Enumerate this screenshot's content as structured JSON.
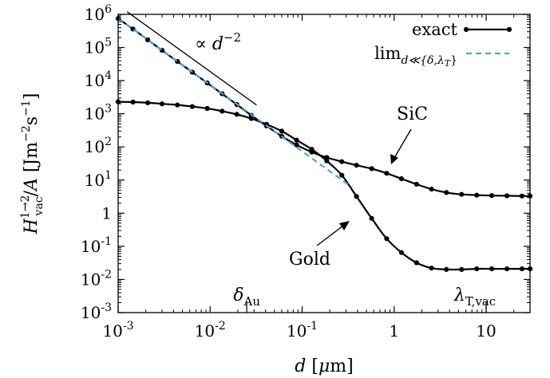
{
  "chart_data": {
    "type": "line",
    "x_scale": "log",
    "y_scale": "log",
    "xlim": [
      0.001,
      30
    ],
    "ylim": [
      0.001,
      1000000
    ],
    "xlabel": "d [μm]",
    "ylabel": "H^{1→2}_vac / A [Jm^-2 s^-1]",
    "grid": false,
    "legend_placement": "top-right",
    "x_ticks": [
      {
        "value": 0.001,
        "label": "10^-3"
      },
      {
        "value": 0.01,
        "label": "10^-2"
      },
      {
        "value": 0.1,
        "label": "10^-1"
      },
      {
        "value": 1,
        "label": "1"
      },
      {
        "value": 10,
        "label": "10"
      }
    ],
    "y_ticks": [
      {
        "value": 1000000,
        "label": "10^6"
      },
      {
        "value": 100000,
        "label": "10^5"
      },
      {
        "value": 10000,
        "label": "10^4"
      },
      {
        "value": 1000,
        "label": "10^3"
      },
      {
        "value": 100,
        "label": "10^2"
      },
      {
        "value": 10,
        "label": "10^1"
      },
      {
        "value": 1,
        "label": "1"
      },
      {
        "value": 0.1,
        "label": "10^-1"
      },
      {
        "value": 0.01,
        "label": "10^-2"
      },
      {
        "value": 0.001,
        "label": "10^-3"
      }
    ],
    "series": [
      {
        "name": "exact",
        "curve": "SiC",
        "color": "#000000",
        "x": [
          0.001,
          0.00145,
          0.0021,
          0.003,
          0.0044,
          0.0064,
          0.0093,
          0.0135,
          0.0195,
          0.028,
          0.041,
          0.06,
          0.087,
          0.127,
          0.185,
          0.27,
          0.39,
          0.57,
          0.83,
          1.2,
          1.75,
          2.55,
          3.7,
          5.4,
          7.9,
          11.5,
          16.8,
          24.5,
          30
        ],
        "y": [
          750000,
          360000,
          170000,
          82000,
          38000,
          18000,
          8500,
          4000,
          1900,
          900,
          430,
          210,
          115,
          70,
          48,
          36,
          28,
          22,
          16,
          11,
          7.5,
          5.3,
          4.2,
          3.7,
          3.5,
          3.4,
          3.35,
          3.3,
          3.3
        ]
      },
      {
        "name": "exact",
        "curve": "Gold",
        "color": "#000000",
        "x": [
          0.001,
          0.00145,
          0.0021,
          0.003,
          0.0044,
          0.0064,
          0.0093,
          0.0135,
          0.0195,
          0.028,
          0.041,
          0.06,
          0.087,
          0.127,
          0.185,
          0.27,
          0.39,
          0.57,
          0.83,
          1.2,
          1.75,
          2.55,
          3.7,
          5.4,
          7.9,
          11.5,
          16.8,
          24.5,
          30
        ],
        "y": [
          2300,
          2250,
          2150,
          2000,
          1850,
          1650,
          1450,
          1200,
          960,
          720,
          480,
          300,
          160,
          85,
          38,
          14,
          3.2,
          0.7,
          0.17,
          0.065,
          0.032,
          0.022,
          0.02,
          0.02,
          0.021,
          0.021,
          0.021,
          0.021,
          0.021
        ]
      },
      {
        "name": "lim_{d≪{δ,λ_T}}",
        "color": "#4fa3db",
        "dashed": true,
        "x": [
          0.001,
          0.35
        ],
        "y": [
          750000,
          6
        ]
      }
    ],
    "annotations": [
      {
        "text": "∝ d^-2",
        "note": "reference line, slope -2"
      },
      {
        "text": "SiC"
      },
      {
        "text": "Gold"
      },
      {
        "text": "δ_Au",
        "x": 0.025
      },
      {
        "text": "λ_T,vac",
        "x": 10
      }
    ]
  }
}
